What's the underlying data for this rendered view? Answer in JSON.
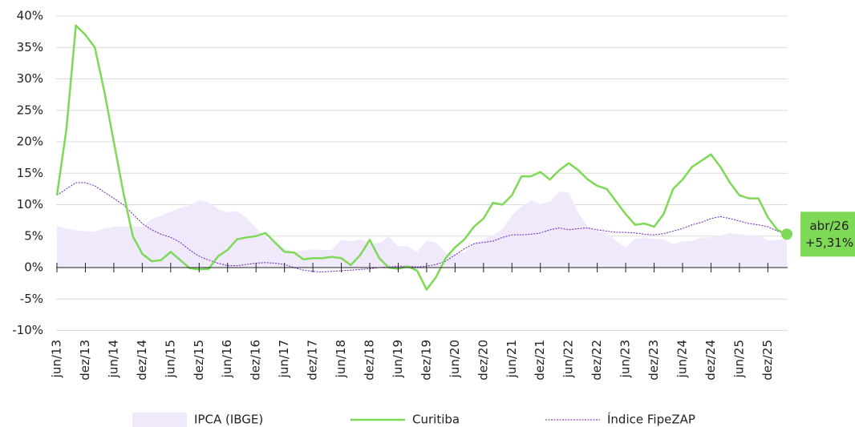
{
  "chart_data": {
    "type": "line",
    "categories": [
      "jun/13",
      null,
      null,
      "dez/13",
      null,
      null,
      "jun/14",
      null,
      null,
      "dez/14",
      null,
      null,
      "jun/15",
      null,
      null,
      "dez/15",
      null,
      null,
      "jun/16",
      null,
      null,
      "dez/16",
      null,
      null,
      "jun/17",
      null,
      null,
      "dez/17",
      null,
      null,
      "jun/18",
      null,
      null,
      "dez/18",
      null,
      null,
      "jun/19",
      null,
      null,
      "dez/19",
      null,
      null,
      "jun/20",
      null,
      null,
      "dez/20",
      null,
      null,
      "jun/21",
      null,
      null,
      "dez/21",
      null,
      null,
      "jun/22",
      null,
      null,
      "dez/22",
      null,
      null,
      "jun/23",
      null,
      null,
      "dez/23",
      null,
      null,
      "jun/24",
      null,
      null,
      "dez/24",
      null,
      null,
      "jun/25",
      null,
      null,
      "dez/25",
      null,
      null
    ],
    "series": [
      {
        "name": "IPCA (IBGE)",
        "kind": "area",
        "color": "#efe9fb",
        "values": [
          6.6,
          6.2,
          5.9,
          5.8,
          5.7,
          6.2,
          6.5,
          6.5,
          6.6,
          6.4,
          7.7,
          8.2,
          8.9,
          9.5,
          9.9,
          10.7,
          10.4,
          9.3,
          8.8,
          9,
          7.9,
          6.3,
          4.8,
          4.1,
          3,
          2.5,
          2.7,
          2.9,
          2.8,
          2.8,
          4.4,
          4.2,
          4.5,
          3.8,
          3.9,
          4.9,
          3.4,
          3.4,
          2.5,
          4.3,
          4,
          2.4,
          2.1,
          2.4,
          3.9,
          4.5,
          5.2,
          6.1,
          8.3,
          9.7,
          10.7,
          10.1,
          10.5,
          12.1,
          11.9,
          8.7,
          6.5,
          5.8,
          5.6,
          4.2,
          3.2,
          4.6,
          4.8,
          4.6,
          4.5,
          3.7,
          4.2,
          4.2,
          4.8,
          4.8,
          5.1,
          5.5,
          5.3,
          5.1,
          5.2,
          4.3,
          4.4,
          4.5
        ]
      },
      {
        "name": "Curitiba",
        "kind": "line",
        "color": "#7ed957",
        "values": [
          11.5,
          22,
          38.5,
          37,
          35,
          28,
          20,
          12,
          5,
          2.2,
          1,
          1.2,
          2.5,
          1.2,
          -0.1,
          -0.3,
          -0.2,
          1.8,
          2.8,
          4.5,
          4.8,
          5,
          5.5,
          4,
          2.5,
          2.4,
          1.3,
          1.5,
          1.5,
          1.7,
          1.5,
          0.4,
          2,
          4.4,
          1.5,
          0,
          -0.2,
          0.2,
          -0.5,
          -3.5,
          -1.5,
          1.5,
          3.2,
          4.5,
          6.5,
          7.8,
          10.3,
          10,
          11.5,
          14.5,
          14.5,
          15.2,
          14,
          15.5,
          16.6,
          15.5,
          14,
          13,
          12.5,
          10.5,
          8.5,
          6.8,
          7,
          6.5,
          8.5,
          12.5,
          14,
          16,
          17,
          18,
          16,
          13.5,
          11.5,
          11,
          11,
          8,
          6,
          5.31
        ]
      },
      {
        "name": "Índice FipeZAP",
        "kind": "dotted",
        "color": "#6a1fb8",
        "values": [
          11.5,
          12.5,
          13.5,
          13.5,
          13,
          12,
          11,
          10,
          8.5,
          7,
          6,
          5.3,
          4.8,
          4,
          2.8,
          1.8,
          1.2,
          0.7,
          0.3,
          0.3,
          0.5,
          0.7,
          0.8,
          0.7,
          0.5,
          0,
          -0.4,
          -0.6,
          -0.7,
          -0.6,
          -0.5,
          -0.4,
          -0.3,
          -0.2,
          0,
          0.1,
          0.2,
          0.2,
          0.1,
          0.2,
          0.5,
          1,
          2,
          3,
          3.8,
          4,
          4.2,
          4.8,
          5.2,
          5.2,
          5.3,
          5.5,
          6,
          6.3,
          6,
          6.2,
          6.3,
          6,
          5.8,
          5.6,
          5.6,
          5.5,
          5.3,
          5.2,
          5.4,
          5.8,
          6.2,
          6.8,
          7.2,
          7.8,
          8.1,
          7.8,
          7.4,
          7,
          6.8,
          6.5,
          5.8,
          5.3
        ]
      }
    ],
    "annotation": {
      "category": "abr/26",
      "text": "+5,31%"
    },
    "ylim": [
      -10,
      40
    ],
    "yticks": [
      {
        "value": -10,
        "label": "-10%"
      },
      {
        "value": -5,
        "label": "-5%"
      },
      {
        "value": 0,
        "label": "0%"
      },
      {
        "value": 5,
        "label": "5%"
      },
      {
        "value": 10,
        "label": "10%"
      },
      {
        "value": 15,
        "label": "15%"
      },
      {
        "value": 20,
        "label": "20%"
      },
      {
        "value": 25,
        "label": "25%"
      },
      {
        "value": 30,
        "label": "30%"
      },
      {
        "value": 35,
        "label": "35%"
      },
      {
        "value": 40,
        "label": "40%"
      }
    ],
    "grid": true,
    "legend": "bottom"
  }
}
